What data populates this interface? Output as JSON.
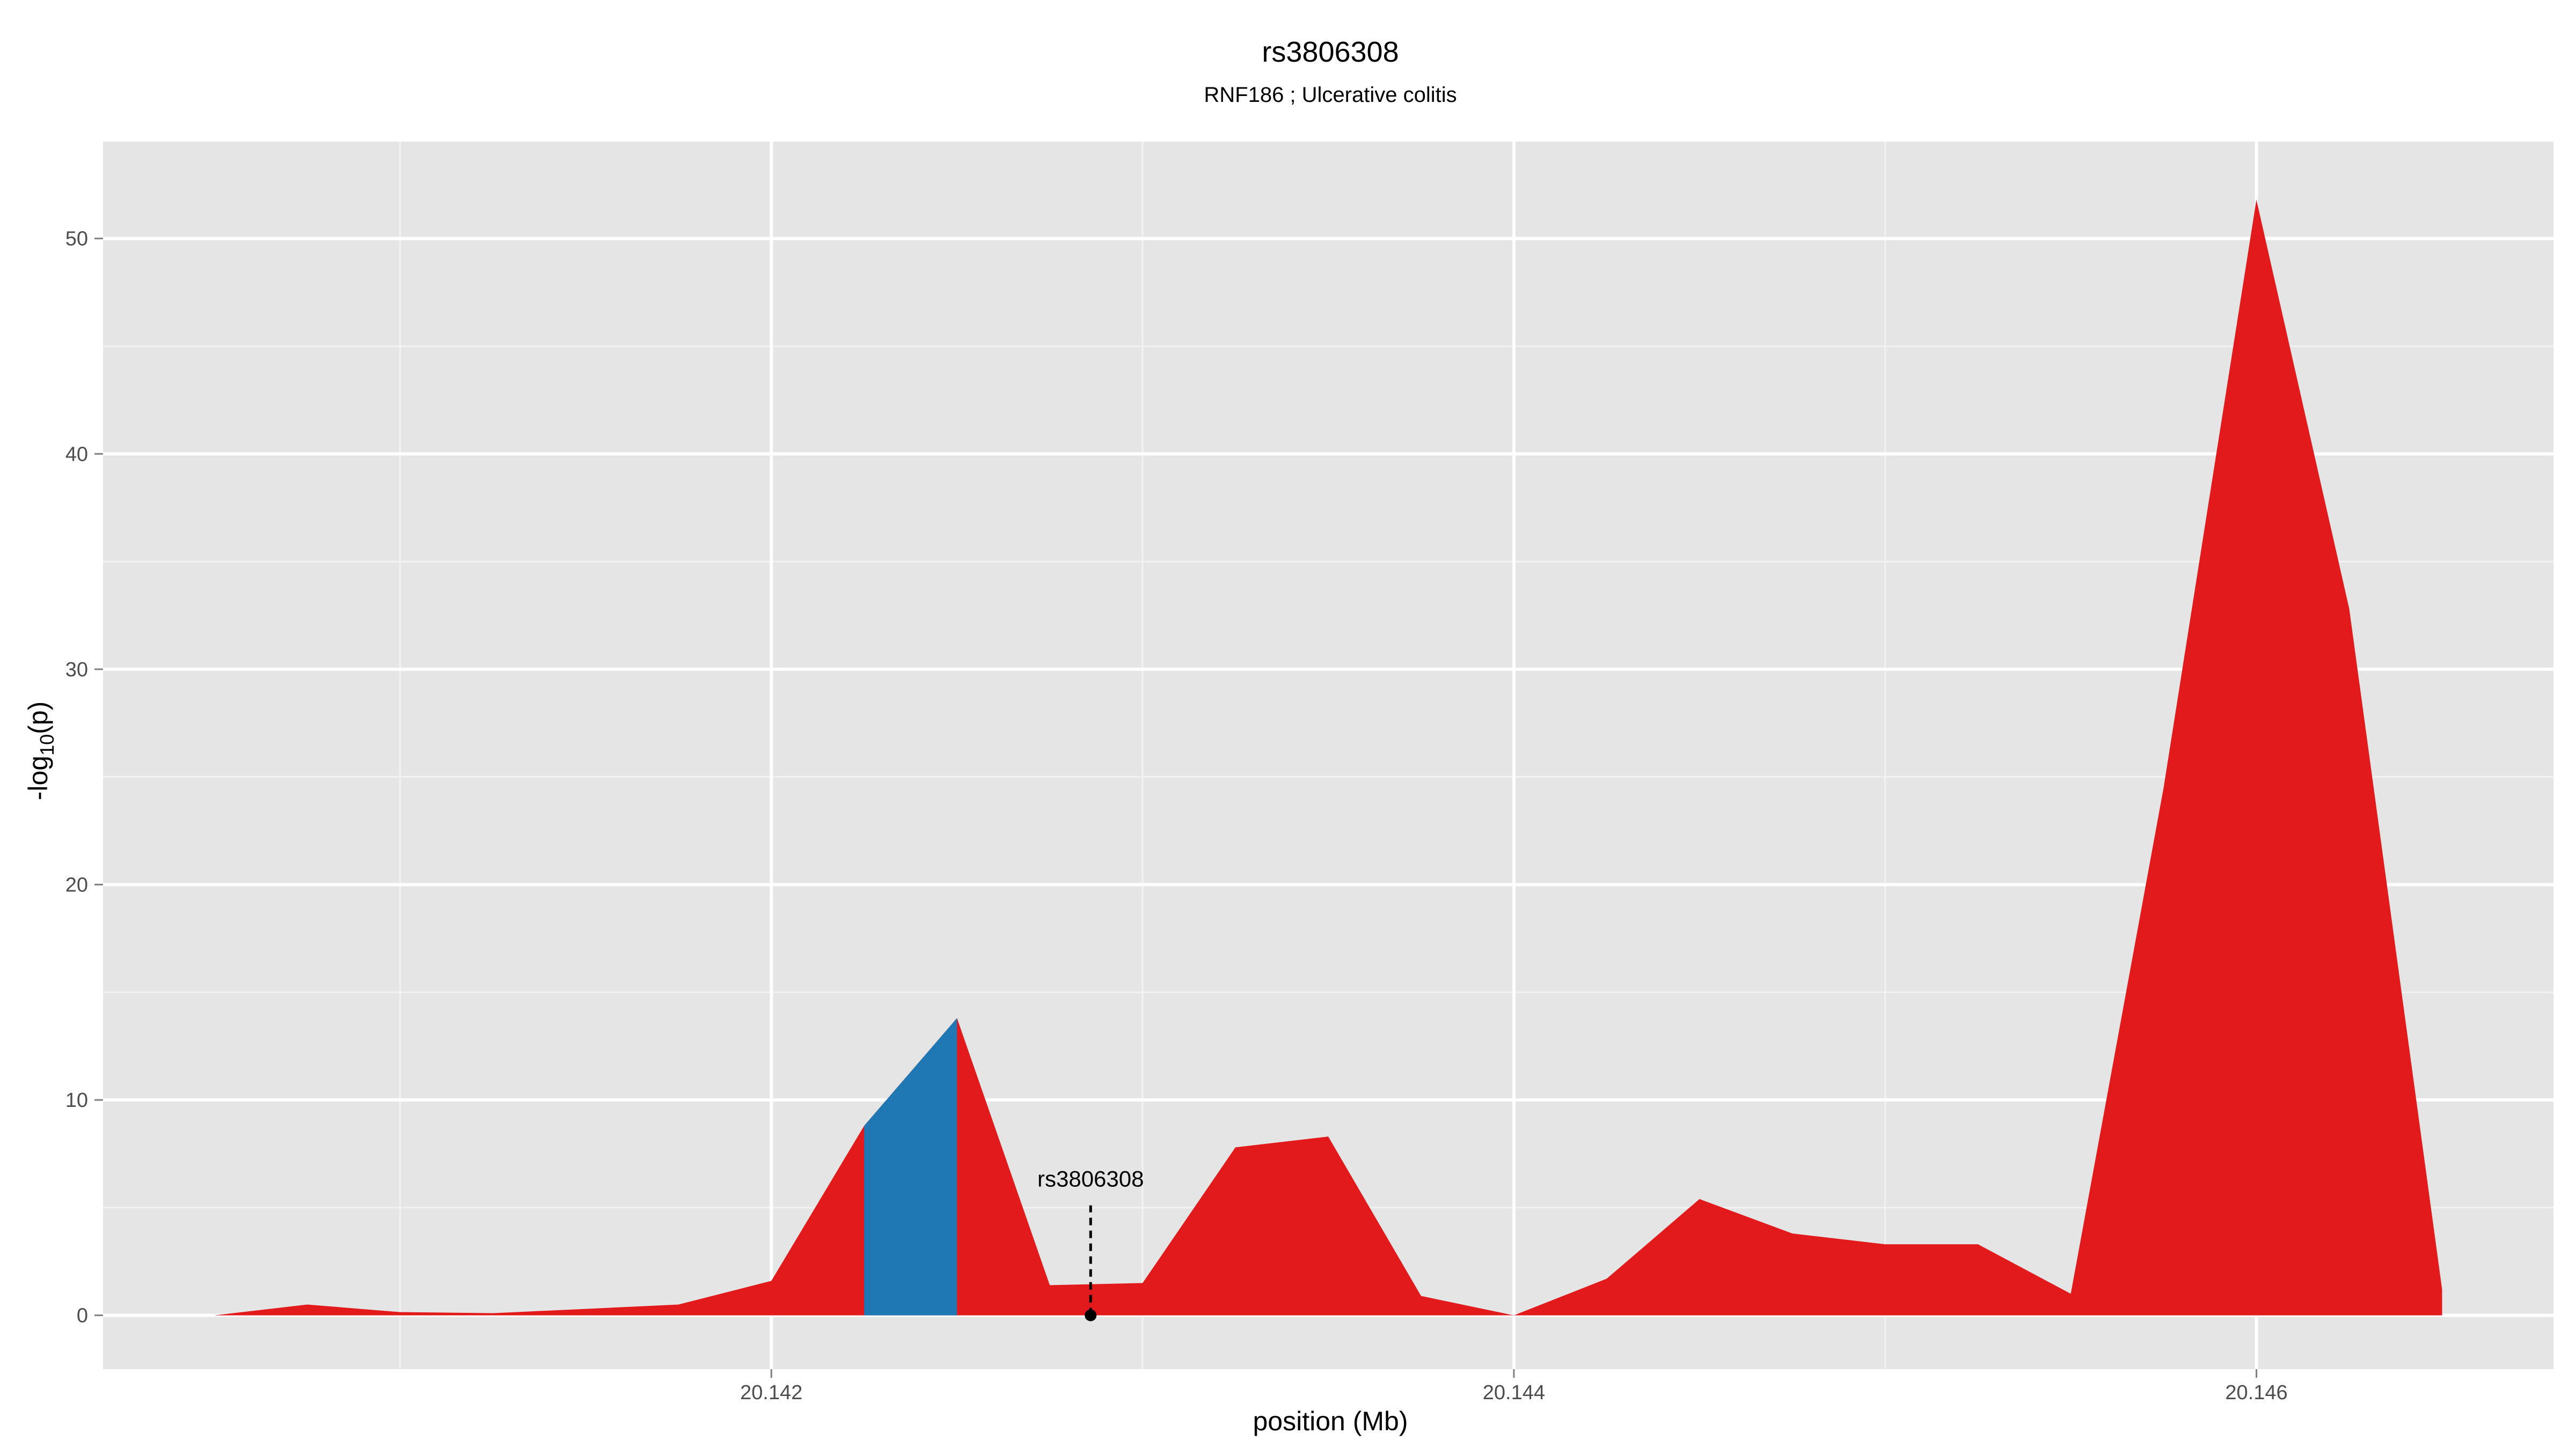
{
  "chart_data": {
    "type": "area",
    "title": "rs3806308",
    "subtitle": "RNF186 ; Ulcerative colitis",
    "xlabel": "position (Mb)",
    "ylabel": "-log10(p)",
    "ylabel_main": "-log",
    "ylabel_sub": "10",
    "ylabel_tail": "(p)",
    "xlim": [
      20.1402,
      20.1468
    ],
    "ylim": [
      -2.5,
      54.5
    ],
    "x_ticks": [
      20.142,
      20.144,
      20.146
    ],
    "x_tick_labels": [
      "20.142",
      "20.144",
      "20.146"
    ],
    "y_ticks": [
      0,
      10,
      20,
      30,
      40,
      50
    ],
    "y_tick_labels": [
      "0",
      "10",
      "20",
      "30",
      "40",
      "50"
    ],
    "grid": true,
    "series": [
      {
        "color": "#e31a1c",
        "x": [
          20.1405,
          20.14075,
          20.141,
          20.14125,
          20.1415,
          20.14175,
          20.142,
          20.14225,
          20.1425,
          20.14275,
          20.143,
          20.14325,
          20.1435,
          20.14375,
          20.144,
          20.14425,
          20.1445,
          20.14475,
          20.145,
          20.14525,
          20.1455,
          20.14575,
          20.146,
          20.14625,
          20.1465,
          20.1465
        ],
        "y": [
          0,
          0.5,
          0.15,
          0.1,
          0.3,
          0.5,
          1.6,
          8.8,
          13.8,
          1.4,
          1.5,
          7.8,
          8.3,
          0.9,
          0.0,
          1.7,
          5.4,
          3.8,
          3.3,
          3.3,
          1.0,
          24.5,
          51.8,
          32.8,
          1.2,
          0
        ]
      },
      {
        "color": "#1f78b4",
        "x": [
          20.14225,
          20.1425
        ],
        "y": [
          8.8,
          13.8
        ]
      }
    ],
    "annotations": [
      {
        "label": "rs3806308",
        "x": 20.14286,
        "y": 0
      }
    ],
    "colors": {
      "panel_background": "#e5e5e5",
      "grid_major": "#ffffff",
      "grid_minor": "#f2f2f2",
      "highlight": "#1f78b4",
      "area": "#e31a1c"
    }
  }
}
